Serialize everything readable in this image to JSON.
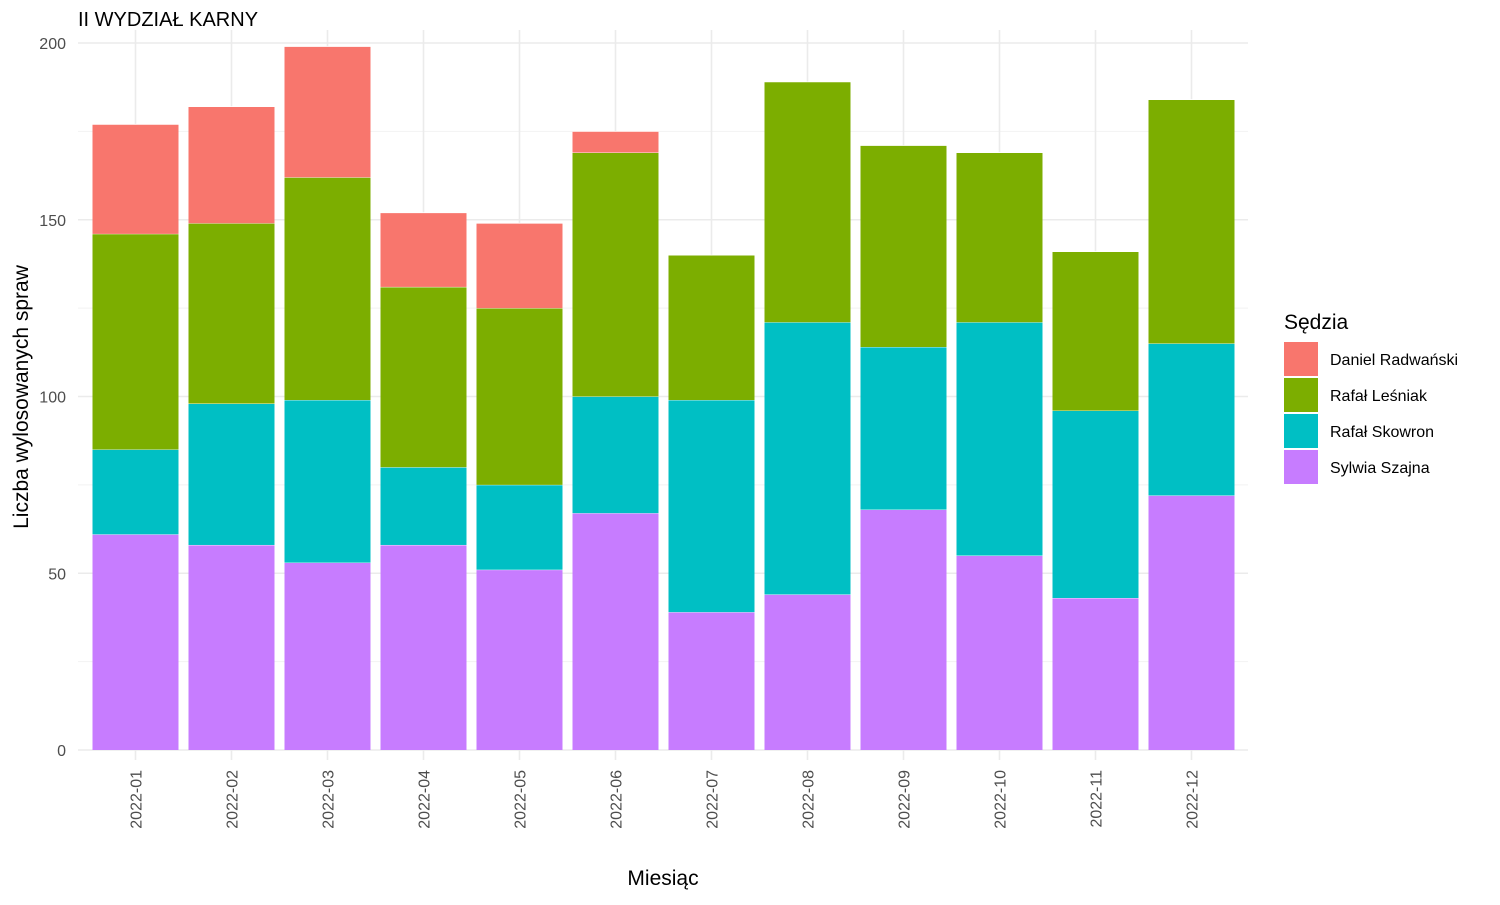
{
  "chart_data": {
    "type": "bar",
    "stacked": true,
    "title": "II WYDZIAŁ KARNY",
    "xlabel": "Miesiąc",
    "ylabel": "Liczba wylosowanych spraw",
    "ylim": [
      0,
      200
    ],
    "y_ticks": [
      0,
      50,
      100,
      150,
      200
    ],
    "grid": true,
    "legend_title": "Sędzia",
    "legend_position": "right",
    "categories": [
      "2022-01",
      "2022-02",
      "2022-03",
      "2022-04",
      "2022-05",
      "2022-06",
      "2022-07",
      "2022-08",
      "2022-09",
      "2022-10",
      "2022-11",
      "2022-12"
    ],
    "series": [
      {
        "name": "Sylwia Szajna",
        "color": "#C77CFF",
        "values": [
          61,
          58,
          53,
          58,
          51,
          67,
          39,
          44,
          68,
          55,
          43,
          72
        ]
      },
      {
        "name": "Rafał Skowron",
        "color": "#00BFC4",
        "values": [
          24,
          40,
          46,
          22,
          24,
          33,
          60,
          77,
          46,
          66,
          53,
          43
        ]
      },
      {
        "name": "Rafał Leśniak",
        "color": "#7CAE00",
        "values": [
          61,
          51,
          63,
          51,
          50,
          69,
          41,
          68,
          57,
          48,
          45,
          69
        ]
      },
      {
        "name": "Daniel Radwański",
        "color": "#F8766D",
        "values": [
          31,
          33,
          37,
          21,
          24,
          6,
          0,
          0,
          0,
          0,
          0,
          0
        ]
      }
    ],
    "legend_order": [
      "Daniel Radwański",
      "Rafał Leśniak",
      "Rafał Skowron",
      "Sylwia Szajna"
    ]
  }
}
